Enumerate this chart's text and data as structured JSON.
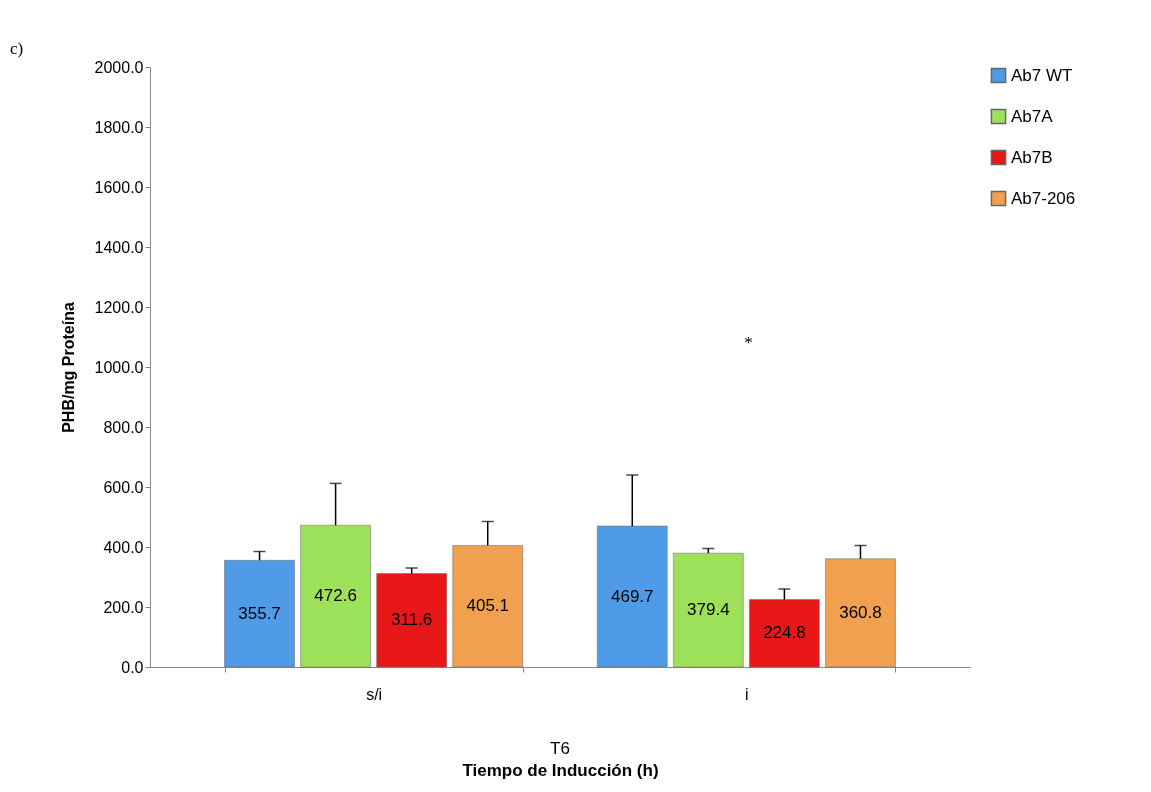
{
  "chart_data": {
    "type": "bar",
    "ylabel": "PHB/mg Proteína",
    "xlabel": "Tiempo de Inducción (h)",
    "categories": [
      "s/i",
      "i"
    ],
    "series": [
      {
        "name": "Ab7 WT",
        "color": "#4f9be8",
        "values": [
          355.7,
          469.7
        ],
        "errors": [
          [
            355.7,
            385
          ],
          [
            469.7,
            640
          ]
        ]
      },
      {
        "name": "Ab7A",
        "color": "#9de05a",
        "values": [
          472.6,
          379.4
        ],
        "errors": [
          [
            472.6,
            612
          ],
          [
            379.4,
            395
          ]
        ]
      },
      {
        "name": "Ab7B",
        "color": "#e81818",
        "values": [
          311.6,
          224.8
        ],
        "errors": [
          [
            311.6,
            330
          ],
          [
            224.8,
            260
          ]
        ]
      },
      {
        "name": "Ab7-206",
        "color": "#f0a04e",
        "values": [
          405.1,
          360.8
        ],
        "errors": [
          [
            405.1,
            485
          ],
          [
            360.8,
            405
          ]
        ]
      }
    ],
    "ylim": [
      0,
      2000
    ],
    "yticks": [
      {
        "value": 0,
        "label": "0.0"
      },
      {
        "value": 200,
        "label": "200.0"
      },
      {
        "value": 400,
        "label": "400.0"
      },
      {
        "value": 600,
        "label": "600.0"
      },
      {
        "value": 800,
        "label": "800.0"
      },
      {
        "value": 1000,
        "label": "1000.0"
      },
      {
        "value": 1200,
        "label": "1200.0"
      },
      {
        "value": 1400,
        "label": "1400.0"
      },
      {
        "value": 1600,
        "label": "1600.0"
      },
      {
        "value": 1800,
        "label": "1800.0"
      },
      {
        "value": 2000,
        "label": "2000.0"
      }
    ],
    "data_labels": true,
    "grid": false,
    "legend": "right",
    "annotations": [
      "c)",
      "T6",
      "*"
    ]
  }
}
